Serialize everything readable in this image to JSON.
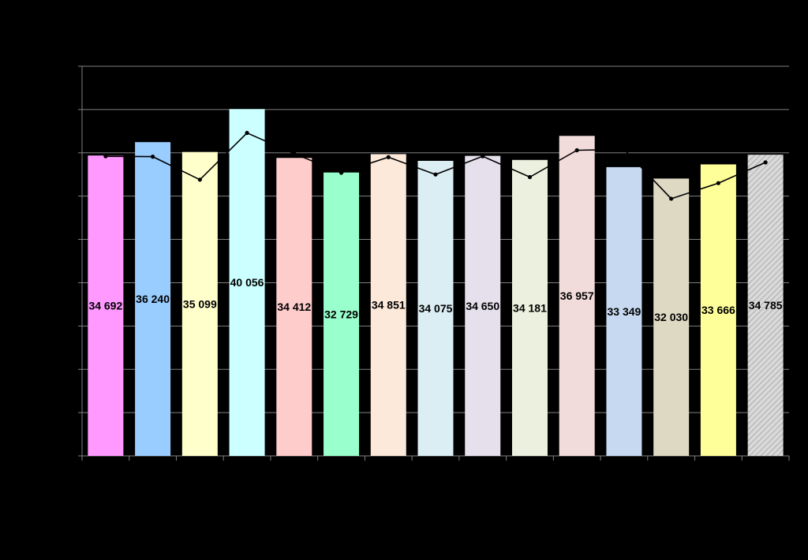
{
  "chart_data": {
    "type": "bar",
    "title": "",
    "xlabel": "",
    "ylabel": "",
    "ylim": [
      0,
      45000
    ],
    "grid": true,
    "series": [
      {
        "kind": "bar",
        "values": [
          34692,
          36240,
          35099,
          40056,
          34412,
          32729,
          34851,
          34075,
          34650,
          34181,
          36957,
          33349,
          32030,
          33666,
          34785
        ],
        "labels": [
          "34 692",
          "36 240",
          "35 099",
          "40 056",
          "34 412",
          "32 729",
          "34 851",
          "34 075",
          "34 650",
          "34 181",
          "36 957",
          "33 349",
          "32 030",
          "33 666",
          "34 785"
        ]
      },
      {
        "kind": "line",
        "values": [
          34600,
          34560,
          31900,
          37300,
          34900,
          32700,
          34500,
          32500,
          34600,
          32200,
          35300,
          35400,
          29700,
          31500,
          33900
        ]
      }
    ],
    "bar_colors": [
      "#ff99ff",
      "#99ccff",
      "#ffffcc",
      "#ccffff",
      "#ffcccc",
      "#99ffcc",
      "#fde9d9",
      "#dbeef3",
      "#e5e0ec",
      "#ebf1de",
      "#f2dcdb",
      "#c6d9f0",
      "#ddd9c3",
      "#ffff99",
      "#d9d9d9"
    ],
    "last_bar_hatched": true,
    "line_color": "#000000",
    "gridline_color": "#808080"
  }
}
